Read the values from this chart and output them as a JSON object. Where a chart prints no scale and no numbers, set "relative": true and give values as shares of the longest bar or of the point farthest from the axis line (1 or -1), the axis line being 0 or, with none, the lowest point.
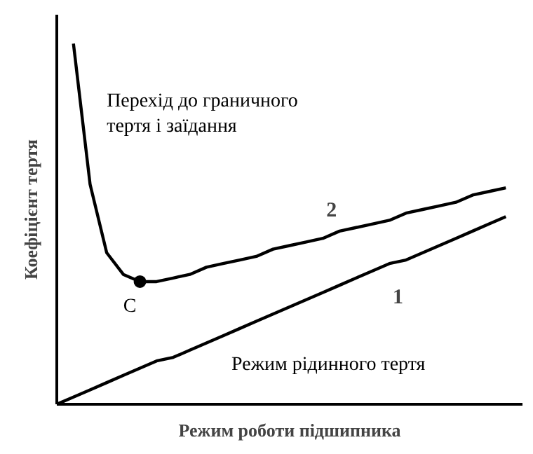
{
  "chart_data": {
    "type": "line",
    "relative": true,
    "xlabel": "Режим роботи підшипника",
    "ylabel": "Коефіцієнт тертя",
    "categories": [
      null,
      null,
      null,
      null,
      null,
      null,
      null,
      null,
      null,
      null,
      null,
      null,
      null,
      null,
      null,
      null,
      null,
      null,
      null,
      null,
      null,
      null,
      null,
      null,
      null,
      null,
      null,
      null
    ],
    "series": [
      {
        "name": "2",
        "color": "#000000",
        "values": [
          null,
          1.0,
          0.61,
          0.42,
          0.36,
          0.34,
          0.34,
          0.35,
          0.36,
          0.38,
          0.39,
          0.4,
          0.41,
          0.43,
          0.44,
          0.45,
          0.46,
          0.48,
          0.49,
          0.5,
          0.51,
          0.53,
          0.54,
          0.55,
          0.56,
          0.58,
          0.59,
          0.6
        ]
      },
      {
        "name": "1",
        "color": "#000000",
        "values": [
          0,
          0.02,
          0.04,
          0.06,
          0.08,
          0.1,
          0.12,
          0.13,
          0.15,
          0.17,
          0.19,
          0.21,
          0.23,
          0.25,
          0.27,
          0.29,
          0.31,
          0.33,
          0.35,
          0.37,
          0.39,
          0.4,
          0.42,
          0.44,
          0.46,
          0.48,
          0.5,
          0.52
        ]
      }
    ],
    "annotations": [
      "Перехід до граничного\nтертя і заїдання",
      "Режим рідинного тертя",
      "C"
    ],
    "grid": false,
    "marker": "none"
  }
}
